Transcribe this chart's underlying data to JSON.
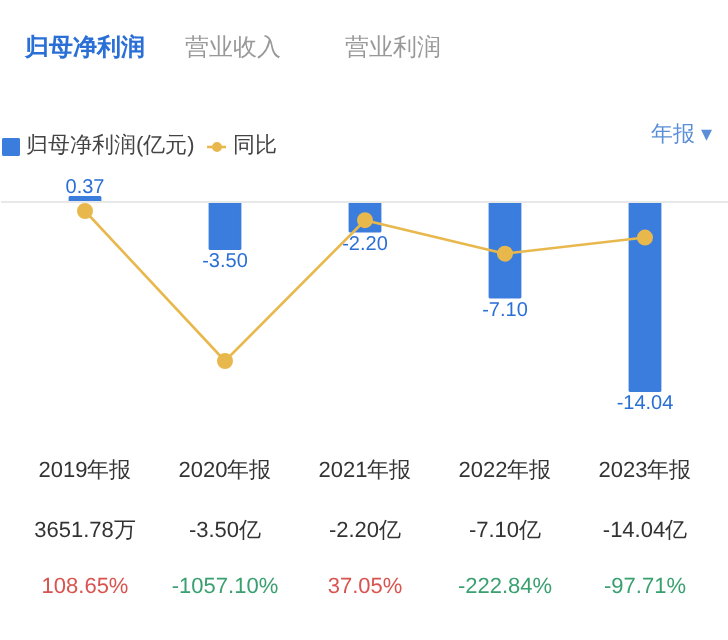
{
  "chart_data": {
    "type": "bar",
    "categories": [
      "2019年报",
      "2020年报",
      "2021年报",
      "2022年报",
      "2023年报"
    ],
    "series": [
      {
        "name": "归母净利润(亿元)",
        "color": "#3b7ddd",
        "values": [
          0.37,
          -3.5,
          -2.2,
          -7.1,
          -14.04
        ],
        "value_labels": [
          "0.37",
          "-3.50",
          "-2.20",
          "-7.10",
          "-14.04"
        ]
      },
      {
        "name": "同比",
        "type": "line",
        "axis": "y2",
        "color": "#e8b84d",
        "values": [
          108.65,
          -1057.1,
          37.05,
          -222.84,
          -97.71
        ],
        "value_labels": [
          "108.65%",
          "-1057.10%",
          "37.05%",
          "-222.84%",
          "-97.71%"
        ]
      }
    ],
    "legend": "top left",
    "marker": "circle",
    "annotations": [
      "归母净利润",
      "营业收入",
      "营业利润",
      "年报 ▾",
      "3651.78万",
      "-3.50亿",
      "-2.20亿",
      "-7.10亿",
      "-14.04亿"
    ]
  }
}
